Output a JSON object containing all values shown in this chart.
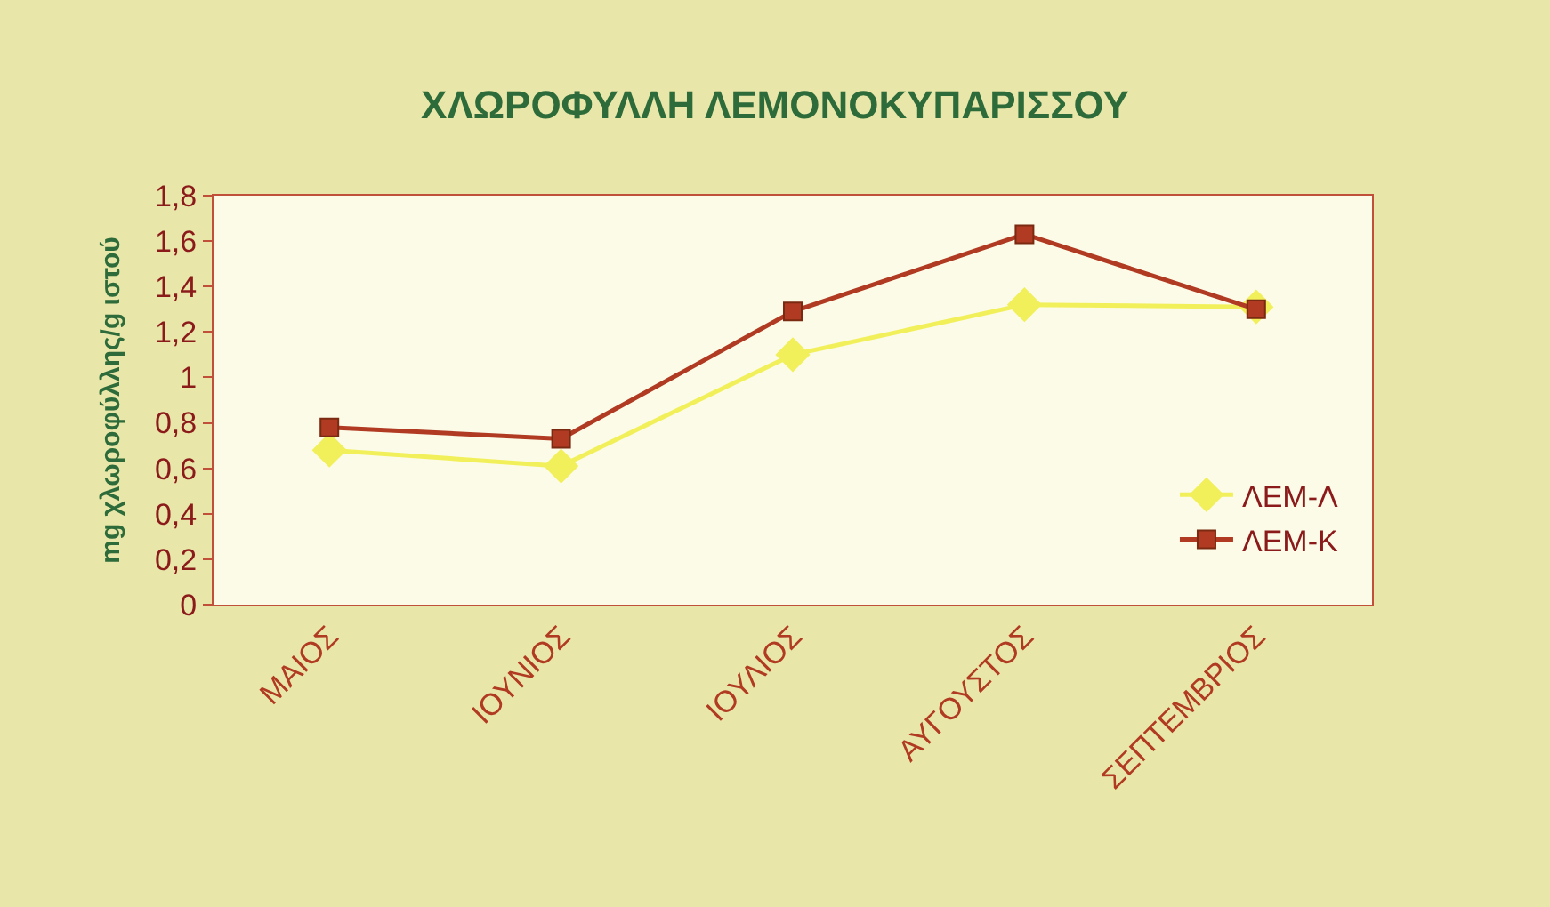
{
  "chart_data": {
    "type": "line",
    "title": "ΧΛΩΡΟΦΥΛΛΗ ΛΕΜΟΝΟΚΥΠΑΡΙΣΣΟΥ",
    "ylabel": "mg χλωροφύλλης/g ιστού",
    "categories": [
      "ΜΑΙΟΣ",
      "ΙΟΥΝΙΟΣ",
      "ΙΟΥΛΙΟΣ",
      "ΑΥΓΟΥΣΤΟΣ",
      "ΣΕΠΤΕΜΒΡΙΟΣ"
    ],
    "series": [
      {
        "name": "ΛΕΜ-Λ",
        "color": "#f2f05a",
        "marker": "diamond",
        "values": [
          0.68,
          0.61,
          1.1,
          1.32,
          1.31
        ]
      },
      {
        "name": "ΛΕΜ-Κ",
        "color": "#b03a22",
        "marker": "square",
        "values": [
          0.78,
          0.73,
          1.29,
          1.63,
          1.3
        ]
      }
    ],
    "ylim": [
      0,
      1.8
    ],
    "yticks": [
      0,
      {
        "value": 0.2,
        "label": "0,2"
      },
      {
        "value": 0.4,
        "label": "0,4"
      },
      {
        "value": 0.6,
        "label": "0,6"
      },
      {
        "value": 0.8,
        "label": "0,8"
      },
      1,
      {
        "value": 1.2,
        "label": "1,2"
      },
      {
        "value": 1.4,
        "label": "1,4"
      },
      {
        "value": 1.6,
        "label": "1,6"
      },
      {
        "value": 1.8,
        "label": "1,8"
      }
    ],
    "grid": false,
    "legend": "bottom right",
    "line_style": "solid"
  }
}
